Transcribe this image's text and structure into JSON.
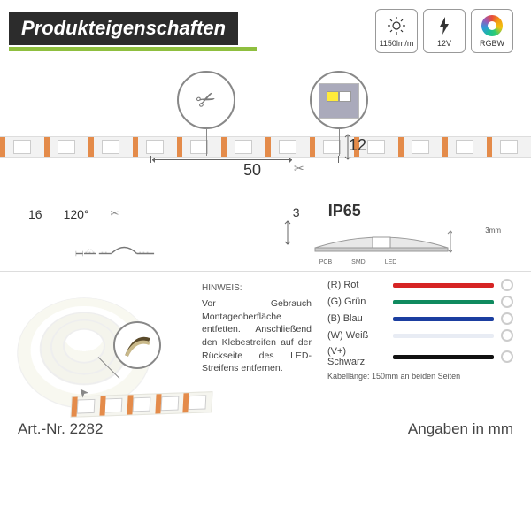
{
  "header": {
    "title": "Produkteigenschaften",
    "accent_color": "#8fbf3f",
    "specs": [
      {
        "id": "lumen",
        "label": "1150lm/m",
        "icon": "sun"
      },
      {
        "id": "volt",
        "label": "12V",
        "icon": "bolt"
      },
      {
        "id": "rgbw",
        "label": "RGBW",
        "icon": "rgbw"
      }
    ]
  },
  "strip": {
    "segment_mm": "50",
    "width_mm": "12",
    "chip_count": 12
  },
  "profile": {
    "tape_width_mm": "16",
    "beam_angle_deg": "120°",
    "thickness_mm": "3",
    "ip_rating": "IP65",
    "cross_height_mm": "3mm",
    "pcb_labels": [
      "PCB",
      "SMD",
      "LED"
    ]
  },
  "note": {
    "heading": "HINWEIS:",
    "text": "Vor Gebrauch Montageoberfläche entfetten. Anschließend den Klebestreifen auf der Rückseite des LED-Streifens entfernen."
  },
  "wires": [
    {
      "code": "(R)",
      "name": "Rot",
      "color": "#d62424"
    },
    {
      "code": "(G)",
      "name": "Grün",
      "color": "#0f8a5f"
    },
    {
      "code": "(B)",
      "name": "Blau",
      "color": "#1b3ea0"
    },
    {
      "code": "(W)",
      "name": "Weiß",
      "color": "#e8ecf4"
    },
    {
      "code": "(V+)",
      "name": "Schwarz",
      "color": "#111111"
    }
  ],
  "cable_note": "Kabellänge: 150mm an beiden Seiten",
  "footer": {
    "artnr_label": "Art.-Nr.",
    "artnr": "2282",
    "units": "Angaben in mm"
  },
  "style": {
    "title_bg": "#2c2c2c",
    "title_fg": "#ffffff",
    "body_fg": "#333333"
  }
}
